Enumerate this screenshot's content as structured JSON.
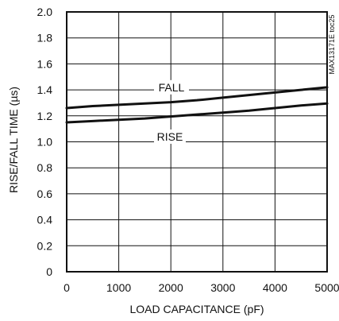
{
  "chart_data": {
    "type": "line",
    "title": "",
    "xlabel": "LOAD CAPACITANCE (pF)",
    "ylabel": "RISE/FALL TIME (µs)",
    "xlim": [
      0,
      5000
    ],
    "ylim": [
      0,
      2.0
    ],
    "xticks": [
      0,
      1000,
      2000,
      3000,
      4000,
      5000
    ],
    "yticks": [
      0,
      0.2,
      0.4,
      0.6,
      0.8,
      1.0,
      1.2,
      1.4,
      1.6,
      1.8,
      2.0
    ],
    "xtick_labels": [
      "0",
      "1000",
      "2000",
      "3000",
      "4000",
      "5000"
    ],
    "ytick_labels": [
      "0",
      "0.2",
      "0.4",
      "0.6",
      "0.8",
      "1.0",
      "1.2",
      "1.4",
      "1.6",
      "1.8",
      "2.0"
    ],
    "grid": true,
    "series": [
      {
        "name": "FALL",
        "x": [
          0,
          500,
          1000,
          1500,
          2000,
          2500,
          3000,
          3500,
          4000,
          4500,
          5000
        ],
        "y": [
          1.26,
          1.275,
          1.285,
          1.295,
          1.305,
          1.32,
          1.34,
          1.36,
          1.38,
          1.4,
          1.42
        ]
      },
      {
        "name": "RISE",
        "x": [
          0,
          500,
          1000,
          1500,
          2000,
          2500,
          3000,
          3500,
          4000,
          4500,
          5000
        ],
        "y": [
          1.15,
          1.16,
          1.17,
          1.18,
          1.195,
          1.21,
          1.225,
          1.24,
          1.26,
          1.28,
          1.295
        ]
      }
    ],
    "annotations": [
      "FALL",
      "RISE"
    ],
    "watermark": "MAX13171E toc25"
  }
}
